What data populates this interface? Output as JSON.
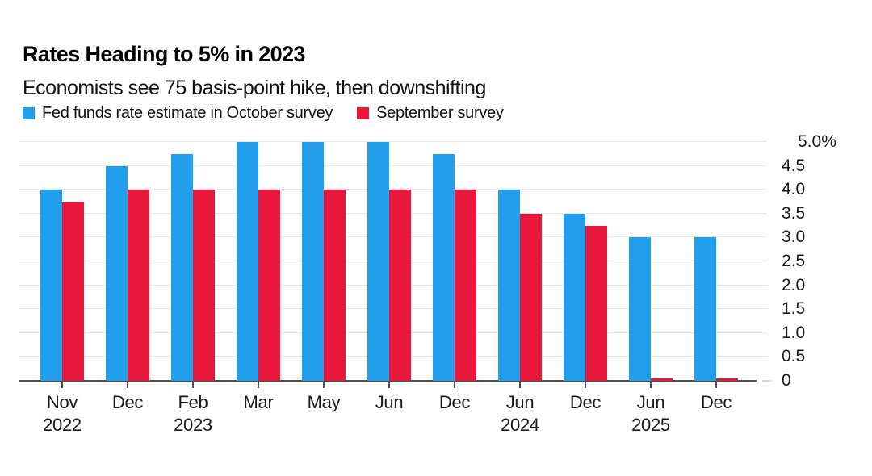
{
  "header": {
    "title": "Rates Heading to 5% in 2023",
    "subtitle": "Economists see 75 basis-point hike, then downshifting"
  },
  "legend": [
    {
      "label": "Fed funds rate estimate in October survey",
      "color": "#219FED"
    },
    {
      "label": "September survey",
      "color": "#E8183C"
    }
  ],
  "colors": {
    "october_series": "#219FED",
    "september_series": "#E8183C",
    "axis": "#4d4d4d",
    "gridline": "#e6e6e6",
    "text": "#1a1a1a"
  },
  "chart_data": {
    "type": "bar",
    "title": "Rates Heading to 5% in 2023",
    "subtitle": "Economists see 75 basis-point hike, then downshifting",
    "categories": [
      {
        "month": "Nov",
        "year": "2022"
      },
      {
        "month": "Dec",
        "year": ""
      },
      {
        "month": "Feb",
        "year": "2023"
      },
      {
        "month": "Mar",
        "year": ""
      },
      {
        "month": "May",
        "year": ""
      },
      {
        "month": "Jun",
        "year": ""
      },
      {
        "month": "Dec",
        "year": ""
      },
      {
        "month": "Jun",
        "year": "2024"
      },
      {
        "month": "Dec",
        "year": ""
      },
      {
        "month": "Jun",
        "year": "2025"
      },
      {
        "month": "Dec",
        "year": ""
      }
    ],
    "series": [
      {
        "name": "Fed funds rate estimate in October survey",
        "color": "#219FED",
        "values": [
          4.0,
          4.5,
          4.75,
          5.0,
          5.0,
          5.0,
          4.75,
          4.0,
          3.5,
          3.0,
          3.0
        ]
      },
      {
        "name": "September survey",
        "color": "#E8183C",
        "values": [
          3.75,
          4.0,
          4.0,
          4.0,
          4.0,
          4.0,
          4.0,
          3.5,
          3.25,
          0.05,
          0.05
        ]
      }
    ],
    "ylim": [
      0,
      5
    ],
    "y_ticks": [
      {
        "value": 5,
        "label": "5.0%"
      },
      {
        "value": 4.5,
        "label": "4.5"
      },
      {
        "value": 4,
        "label": "4.0"
      },
      {
        "value": 3.5,
        "label": "3.5"
      },
      {
        "value": 3,
        "label": "3.0"
      },
      {
        "value": 2.5,
        "label": "2.5"
      },
      {
        "value": 2,
        "label": "2.0"
      },
      {
        "value": 1.5,
        "label": "1.5"
      },
      {
        "value": 1,
        "label": "1.0"
      },
      {
        "value": 0.5,
        "label": "0.5"
      },
      {
        "value": 0,
        "label": "0"
      }
    ],
    "grid": true,
    "legend_position": "top",
    "y_axis_side": "right"
  }
}
